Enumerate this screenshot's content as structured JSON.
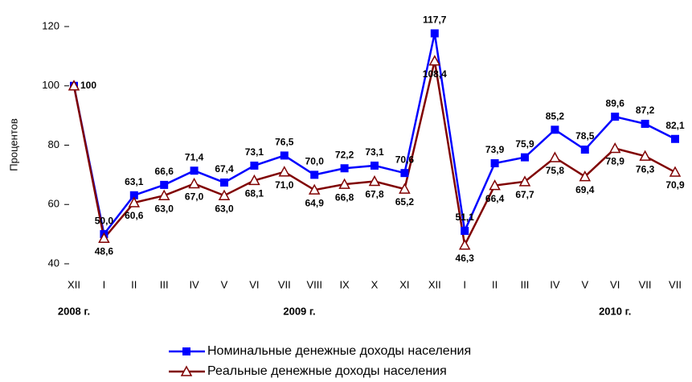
{
  "chart_data": {
    "type": "line",
    "y_label": "Процентов",
    "categories": [
      "XII",
      "I",
      "II",
      "III",
      "IV",
      "V",
      "VI",
      "VII",
      "VIII",
      "IX",
      "X",
      "XI",
      "XII",
      "I",
      "II",
      "III",
      "IV",
      "V",
      "VI",
      "VII",
      "VII"
    ],
    "annotations": [
      "2008 г.",
      "2009 г.",
      "2010 г."
    ],
    "ylim": [
      40,
      120
    ],
    "yticks": [
      40,
      60,
      80,
      100,
      120
    ],
    "series": [
      {
        "name": "Номинальные денежные доходы населения",
        "color": "#0000ff",
        "marker": "square",
        "values": [
          100,
          50.0,
          63.1,
          66.6,
          71.4,
          67.4,
          73.1,
          76.5,
          70.0,
          72.2,
          73.1,
          70.6,
          117.7,
          51.1,
          73.9,
          75.9,
          85.2,
          78.5,
          89.6,
          87.2,
          82.1
        ],
        "value_labels": [
          "100",
          "50,0",
          "63,1",
          "66,6",
          "71,4",
          "67,4",
          "73,1",
          "76,5",
          "70,0",
          "72,2",
          "73,1",
          "70,6",
          "117,7",
          "51,1",
          "73,9",
          "75,9",
          "85,2",
          "78,5",
          "89,6",
          "87,2",
          "82,1"
        ]
      },
      {
        "name": "Реальные денежные доходы населения",
        "color": "#800000",
        "marker": "triangle",
        "values": [
          100,
          48.6,
          60.6,
          63.0,
          67.0,
          63.0,
          68.1,
          71.0,
          64.9,
          66.8,
          67.8,
          65.2,
          108.4,
          46.3,
          66.4,
          67.7,
          75.8,
          69.4,
          78.9,
          76.3,
          70.9
        ],
        "value_labels": [
          null,
          "48,6",
          "60,6",
          "63,0",
          "67,0",
          "63,0",
          "68,1",
          "71,0",
          "64,9",
          "66,8",
          "67,8",
          "65,2",
          "108,4",
          "46,3",
          "66,4",
          "67,7",
          "75,8",
          "69,4",
          "78,9",
          "76,3",
          "70,9"
        ]
      }
    ]
  }
}
